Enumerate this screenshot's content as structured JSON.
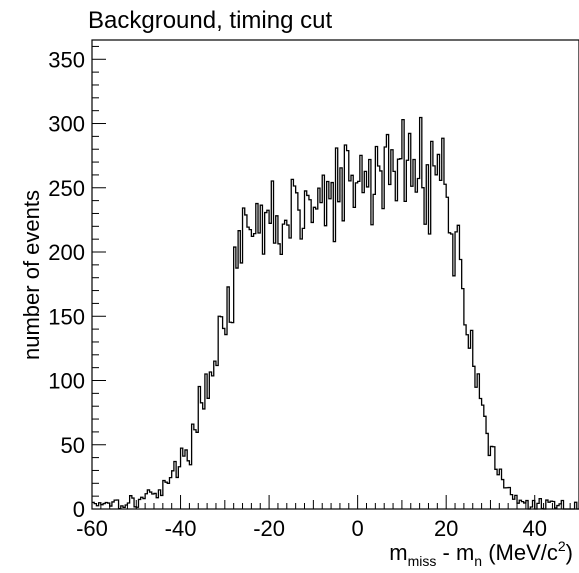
{
  "chart_data": {
    "type": "histogram",
    "title": "Background, timing cut",
    "ylabel": "number of events",
    "xlabel_parts": {
      "m": "m",
      "sub_miss": "miss",
      "minus_mn": " - m",
      "sub_n": "n",
      "unit_open": " (MeV/c",
      "sup_2": "2",
      "unit_close": ")"
    },
    "xlim": [
      -60,
      50
    ],
    "ylim": [
      0,
      365
    ],
    "grid": false,
    "x_major_ticks": [
      -60,
      -40,
      -20,
      0,
      20,
      40
    ],
    "x_major_tick_labels": [
      "-60",
      "-40",
      "-20",
      "0",
      "20",
      "40"
    ],
    "y_major_ticks": [
      0,
      50,
      100,
      150,
      200,
      250,
      300,
      350
    ],
    "y_major_tick_labels": [
      "0",
      "50",
      "100",
      "150",
      "200",
      "250",
      "300",
      "350"
    ],
    "bin_width": 0.5,
    "bin_start": -60,
    "profile": [
      [
        -60,
        5
      ],
      [
        -50,
        6
      ],
      [
        -46,
        12
      ],
      [
        -42,
        25
      ],
      [
        -38,
        48
      ],
      [
        -35,
        85
      ],
      [
        -32,
        125
      ],
      [
        -30,
        150
      ],
      [
        -28,
        175
      ],
      [
        -26,
        198
      ],
      [
        -24,
        215
      ],
      [
        -20,
        222
      ],
      [
        -15,
        226
      ],
      [
        -10,
        234
      ],
      [
        -5,
        245
      ],
      [
        0,
        252
      ],
      [
        5,
        262
      ],
      [
        10,
        265
      ],
      [
        15,
        268
      ],
      [
        19,
        264
      ],
      [
        20,
        242
      ],
      [
        22,
        210
      ],
      [
        24,
        165
      ],
      [
        26,
        125
      ],
      [
        28,
        85
      ],
      [
        30,
        48
      ],
      [
        32,
        25
      ],
      [
        34,
        12
      ],
      [
        36,
        6
      ],
      [
        40,
        3
      ],
      [
        45,
        2
      ],
      [
        50,
        2
      ]
    ],
    "fluctuation": 0.07,
    "seed": 17
  }
}
